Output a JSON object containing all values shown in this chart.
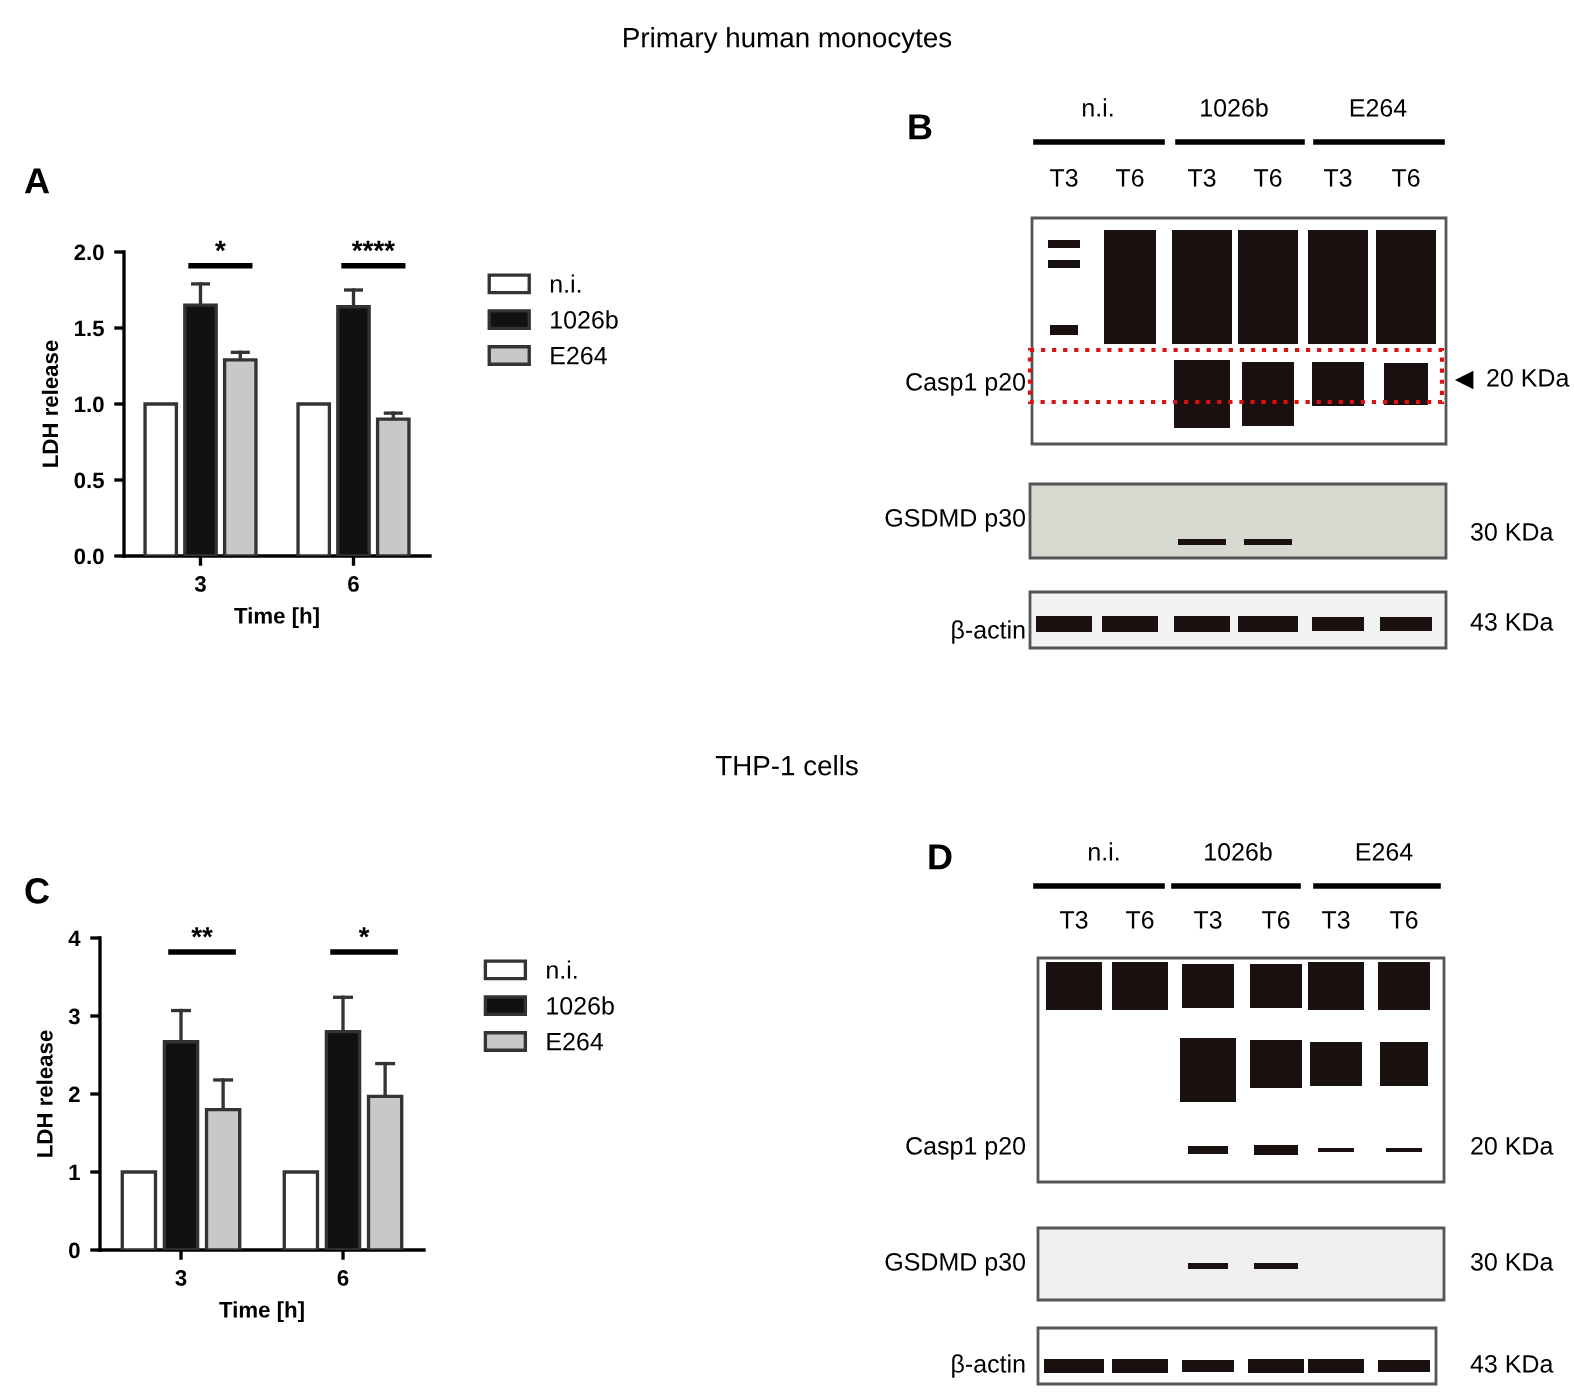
{
  "chart_data": [
    {
      "type": "bar",
      "xlabel": "Time [h]",
      "ylabel": "LDH release",
      "categories": [
        "3",
        "6"
      ],
      "series": [
        {
          "name": "n.i.",
          "color": "#ffffff",
          "values": [
            1.0,
            1.0
          ]
        },
        {
          "name": "1026b",
          "color": "#111111",
          "values": [
            1.65,
            1.64
          ],
          "errors": [
            [
              1.65,
              1.79
            ],
            [
              1.64,
              1.75
            ]
          ]
        },
        {
          "name": "E264",
          "color": "#c8c8c8",
          "values": [
            1.29,
            0.9
          ],
          "errors": [
            [
              1.29,
              1.34
            ],
            [
              0.9,
              0.94
            ]
          ]
        }
      ],
      "ylim": [
        0,
        2.0
      ],
      "yticks": [
        {
          "value": 0,
          "label": "0.0"
        },
        {
          "value": 0.5,
          "label": "0.5"
        },
        {
          "value": 1,
          "label": "1.0"
        },
        {
          "value": 1.5,
          "label": "1.5"
        },
        {
          "value": 2,
          "label": "2.0"
        }
      ],
      "legend": "right",
      "grid": false,
      "annotations": [
        "A",
        "*",
        "****"
      ]
    },
    {
      "type": "other",
      "title": "Primary human monocytes",
      "annotations": [
        "B",
        "n.i.",
        "1026b",
        "E264",
        "T3",
        "T6",
        "T3",
        "T6",
        "T3",
        "T6",
        "Casp1 p20",
        "20 KDa",
        "GSDMD p30",
        "30 KDa",
        "β-actin",
        "43 KDa"
      ]
    },
    {
      "type": "bar",
      "xlabel": "Time [h]",
      "ylabel": "LDH release",
      "categories": [
        "3",
        "6"
      ],
      "series": [
        {
          "name": "n.i.",
          "color": "#ffffff",
          "values": [
            1,
            1
          ]
        },
        {
          "name": "1026b",
          "color": "#111111",
          "values": [
            2.67,
            2.8
          ],
          "errors": [
            [
              2.67,
              3.07
            ],
            [
              2.8,
              3.24
            ]
          ]
        },
        {
          "name": "E264",
          "color": "#c8c8c8",
          "values": [
            1.8,
            1.97
          ],
          "errors": [
            [
              1.8,
              2.18
            ],
            [
              1.97,
              2.39
            ]
          ]
        }
      ],
      "ylim": [
        0,
        4
      ],
      "yticks": [
        0,
        1,
        2,
        3,
        4
      ],
      "legend": "right",
      "grid": false,
      "annotations": [
        "C",
        "**",
        "*"
      ]
    },
    {
      "type": "other",
      "title": "THP-1 cells",
      "annotations": [
        "D",
        "n.i.",
        "1026b",
        "E264",
        "T3",
        "T6",
        "T3",
        "T6",
        "T3",
        "T6",
        "Casp1 p20",
        "20 KDa",
        "GSDMD p30",
        "30 KDa",
        "β-actin",
        "43 KDa"
      ]
    }
  ]
}
